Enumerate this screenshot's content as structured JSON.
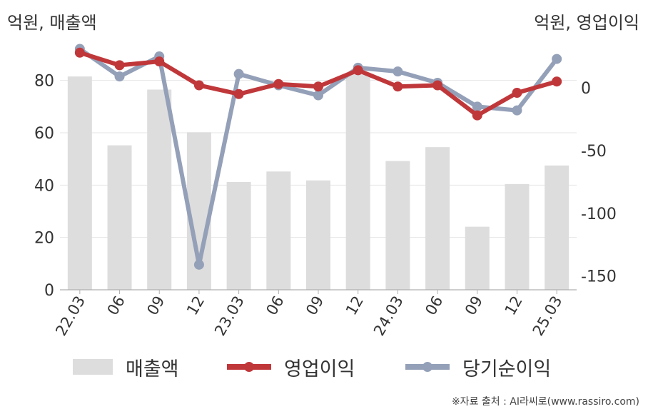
{
  "units": {
    "left": "억원, 매출액",
    "right": "억원, 영업이익"
  },
  "colors": {
    "bar": "#dddddd",
    "operating": "#c0373a",
    "net": "#94a0b8",
    "grid": "#e6e6e6",
    "axis": "#b0b0b0"
  },
  "chart_data": {
    "type": "bar",
    "categories": [
      "22.03",
      "06",
      "09",
      "12",
      "23.03",
      "06",
      "09",
      "12",
      "24.03",
      "06",
      "09",
      "12",
      "25.03"
    ],
    "left_axis": {
      "ylim": [
        0,
        93
      ],
      "ticks": [
        "0",
        "20",
        "40",
        "60",
        "80"
      ],
      "tick_values": [
        0,
        20,
        40,
        60,
        80
      ]
    },
    "right_axis": {
      "ylim": [
        -161,
        33
      ],
      "ticks": [
        "0",
        "-50",
        "-100",
        "-150"
      ],
      "tick_values": [
        0,
        -50,
        -100,
        -150
      ]
    },
    "grid": "horizontal",
    "legend_position": "bottom",
    "series": [
      {
        "name": "매출액",
        "type": "bar",
        "axis": "left",
        "values": [
          81.5,
          55.2,
          76.5,
          60.2,
          41.2,
          45.2,
          41.8,
          83.0,
          49.2,
          54.5,
          24.1,
          40.4,
          47.5
        ]
      },
      {
        "name": "영업이익",
        "type": "line",
        "axis": "right",
        "values": [
          28,
          18,
          21,
          2,
          -5,
          3,
          1,
          14,
          1,
          2,
          -22,
          -4,
          5
        ]
      },
      {
        "name": "당기순이익",
        "type": "line",
        "axis": "right",
        "values": [
          31,
          9,
          25,
          -141,
          11,
          2,
          -6,
          16,
          13,
          4,
          -15,
          -18,
          23
        ]
      }
    ]
  },
  "legend": {
    "bar": "매출액",
    "operating": "영업이익",
    "net": "당기순이익"
  },
  "source": "※자료 출처 : AI라씨로(www.rassiro.com)"
}
